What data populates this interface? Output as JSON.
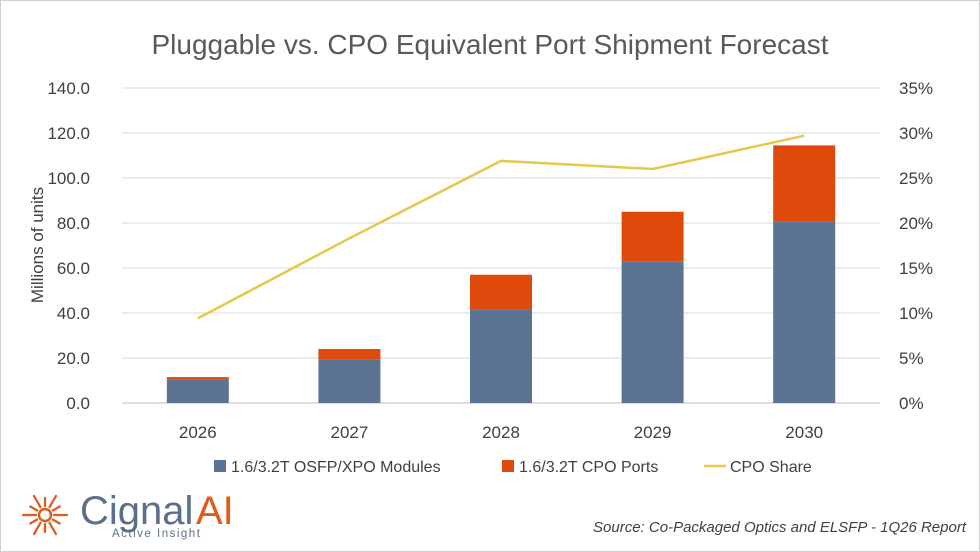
{
  "chart_data": {
    "type": "bar",
    "stacked": true,
    "title": "Pluggable vs. CPO Equivalent Port Shipment Forecast",
    "ylabel": "Millions of units",
    "categories": [
      "2026",
      "2027",
      "2028",
      "2029",
      "2030"
    ],
    "ylim": [
      0,
      140
    ],
    "y_ticks": [
      "0.0",
      "20.0",
      "40.0",
      "60.0",
      "80.0",
      "100.0",
      "120.0",
      "140.0"
    ],
    "y2lim": [
      0,
      35
    ],
    "y2_ticks": [
      "0%",
      "5%",
      "10%",
      "15%",
      "20%",
      "25%",
      "30%",
      "35%"
    ],
    "grid": true,
    "legend_position": "bottom",
    "series": [
      {
        "name": "1.6/3.2T OSFP/XPO Modules",
        "type": "bar",
        "color": "#5d7394",
        "values": [
          10.5,
          19.5,
          41.5,
          63,
          80.5
        ]
      },
      {
        "name": "1.6/3.2T CPO Ports",
        "type": "bar",
        "color": "#dd4a0c",
        "values": [
          1,
          4.5,
          15.5,
          22,
          34
        ]
      },
      {
        "name": "CPO Share",
        "type": "line",
        "axis": "right",
        "color": "#e3c84b",
        "values": [
          9.4,
          18.3,
          26.9,
          26.0,
          29.7
        ]
      }
    ]
  },
  "branding": {
    "logo_word": "Cignal",
    "logo_ai": "AI",
    "tagline": "Active Insight",
    "source": "Source: Co-Packaged Optics and ELSFP - 1Q26 Report"
  }
}
